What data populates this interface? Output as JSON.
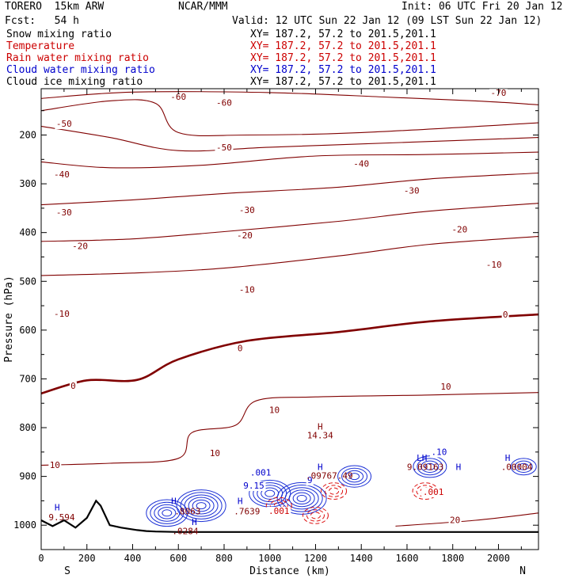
{
  "header": {
    "model": "TORERO  15km ARW",
    "center": "NCAR/MMM",
    "init": "Init: 06 UTC Fri 20 Jan 12",
    "fcst": "Fcst:   54 h",
    "valid": "Valid: 12 UTC Sun 22 Jan 12 (09 LST Sun 22 Jan 12)"
  },
  "fields": [
    {
      "label": "Snow mixing ratio",
      "xy": "XY= 187.2, 57.2 to 201.5,201.1",
      "color": "#000000"
    },
    {
      "label": "Temperature",
      "xy": "XY= 187.2, 57.2 to 201.5,201.1",
      "color": "#cc0000"
    },
    {
      "label": "Rain water mixing ratio",
      "xy": "XY= 187.2, 57.2 to 201.5,201.1",
      "color": "#cc0000"
    },
    {
      "label": "Cloud water mixing ratio",
      "xy": "XY= 187.2, 57.2 to 201.5,201.1",
      "color": "#0000cc"
    },
    {
      "label": "Cloud ice mixing ratio",
      "xy": "XY= 187.2, 57.2 to 201.5,201.1",
      "color": "#000000"
    }
  ],
  "chart_data": {
    "type": "contour",
    "xlabel": "Distance (km)",
    "ylabel": "Pressure (hPa)",
    "xlim": [
      0,
      2175
    ],
    "ylim": [
      1050,
      105
    ],
    "xticks": [
      0,
      200,
      400,
      600,
      800,
      1000,
      1200,
      1400,
      1600,
      1800,
      2000
    ],
    "yticks": [
      200,
      300,
      400,
      500,
      600,
      700,
      800,
      900,
      1000
    ],
    "x_end_labels": {
      "left": "S",
      "right": "N"
    },
    "temperature_contours": [
      {
        "value": -70,
        "points": [
          [
            0,
            125
          ],
          [
            400,
            112
          ],
          [
            1000,
            113
          ],
          [
            1500,
            122
          ],
          [
            1900,
            130
          ],
          [
            2175,
            138
          ]
        ]
      },
      {
        "value": -60,
        "points": [
          [
            0,
            150
          ],
          [
            300,
            130
          ],
          [
            500,
            135
          ],
          [
            600,
            195
          ],
          [
            900,
            200
          ],
          [
            1400,
            195
          ],
          [
            2175,
            175
          ]
        ]
      },
      {
        "value": -50,
        "points": [
          [
            0,
            182
          ],
          [
            300,
            205
          ],
          [
            600,
            232
          ],
          [
            1000,
            225
          ],
          [
            1600,
            215
          ],
          [
            2175,
            205
          ]
        ]
      },
      {
        "value": -40,
        "points": [
          [
            0,
            255
          ],
          [
            300,
            267
          ],
          [
            700,
            262
          ],
          [
            1200,
            243
          ],
          [
            1700,
            240
          ],
          [
            2175,
            235
          ]
        ]
      },
      {
        "value": -30,
        "points": [
          [
            0,
            343
          ],
          [
            400,
            333
          ],
          [
            800,
            320
          ],
          [
            1300,
            307
          ],
          [
            1700,
            290
          ],
          [
            2175,
            278
          ]
        ]
      },
      {
        "value": -20,
        "points": [
          [
            0,
            418
          ],
          [
            400,
            413
          ],
          [
            800,
            398
          ],
          [
            1300,
            377
          ],
          [
            1700,
            356
          ],
          [
            2175,
            340
          ]
        ]
      },
      {
        "value": -10,
        "points": [
          [
            0,
            488
          ],
          [
            400,
            483
          ],
          [
            800,
            473
          ],
          [
            1300,
            448
          ],
          [
            1700,
            424
          ],
          [
            2175,
            408
          ]
        ]
      },
      {
        "value": 0,
        "points": [
          [
            0,
            730
          ],
          [
            200,
            703
          ],
          [
            420,
            702
          ],
          [
            600,
            660
          ],
          [
            900,
            622
          ],
          [
            1300,
            604
          ],
          [
            1700,
            582
          ],
          [
            2175,
            568
          ]
        ]
      },
      {
        "value": 10,
        "points": [
          [
            0,
            877
          ],
          [
            300,
            873
          ],
          [
            600,
            863
          ],
          [
            660,
            810
          ],
          [
            850,
            795
          ],
          [
            940,
            745
          ],
          [
            1200,
            737
          ],
          [
            1700,
            733
          ],
          [
            2175,
            728
          ]
        ]
      },
      {
        "value": 20,
        "points": [
          [
            1550,
            1002
          ],
          [
            1900,
            990
          ],
          [
            2175,
            975
          ]
        ]
      }
    ],
    "temperature_labels": [
      {
        "text": "-70",
        "x": 2000,
        "y": 120
      },
      {
        "text": "-60",
        "x": 600,
        "y": 128
      },
      {
        "text": "-60",
        "x": 800,
        "y": 140
      },
      {
        "text": "-50",
        "x": 100,
        "y": 183
      },
      {
        "text": "-50",
        "x": 800,
        "y": 232
      },
      {
        "text": "-40",
        "x": 90,
        "y": 287
      },
      {
        "text": "-40",
        "x": 1400,
        "y": 265
      },
      {
        "text": "-30",
        "x": 100,
        "y": 365
      },
      {
        "text": "-30",
        "x": 900,
        "y": 360
      },
      {
        "text": "-30",
        "x": 1620,
        "y": 320
      },
      {
        "text": "-20",
        "x": 170,
        "y": 434
      },
      {
        "text": "-20",
        "x": 890,
        "y": 412
      },
      {
        "text": "-20",
        "x": 1830,
        "y": 400
      },
      {
        "text": "-10",
        "x": 90,
        "y": 573
      },
      {
        "text": "-10",
        "x": 900,
        "y": 523
      },
      {
        "text": "-10",
        "x": 1980,
        "y": 472
      },
      {
        "text": "0",
        "x": 140,
        "y": 720
      },
      {
        "text": "0",
        "x": 870,
        "y": 643
      },
      {
        "text": "0",
        "x": 2030,
        "y": 574
      },
      {
        "text": "10",
        "x": 60,
        "y": 883
      },
      {
        "text": "10",
        "x": 760,
        "y": 858
      },
      {
        "text": "10",
        "x": 1020,
        "y": 770
      },
      {
        "text": "10",
        "x": 1770,
        "y": 722
      },
      {
        "text": "20",
        "x": 1810,
        "y": 996
      }
    ],
    "max_labels": [
      {
        "text": "H",
        "x": 1220,
        "y": 804
      },
      {
        "text": "14.34",
        "x": 1220,
        "y": 822
      },
      {
        "text": "H",
        "x": 70,
        "y": 970
      },
      {
        "text": "9.594",
        "x": 90,
        "y": 990
      },
      {
        "text": "H",
        "x": 580,
        "y": 957
      },
      {
        "text": ".8063",
        "x": 640,
        "y": 978
      },
      {
        "text": "H",
        "x": 870,
        "y": 957
      },
      {
        "text": ".7639",
        "x": 900,
        "y": 978
      },
      {
        "text": "H",
        "x": 670,
        "y": 1000
      },
      {
        "text": ".0284",
        "x": 630,
        "y": 1018
      },
      {
        "text": "H",
        "x": 1220,
        "y": 887
      },
      {
        "text": ".09767.49",
        "x": 1260,
        "y": 905
      },
      {
        "text": "H",
        "x": 1825,
        "y": 887
      },
      {
        "text": "LH",
        "x": 1665,
        "y": 868
      },
      {
        "text": "9.09163",
        "x": 1680,
        "y": 887
      },
      {
        "text": "H",
        "x": 2040,
        "y": 868
      },
      {
        "text": ".00004",
        "x": 2080,
        "y": 887
      }
    ],
    "rain_contour_labels": [
      {
        "text": ".001",
        "x": 1715,
        "y": 938
      },
      {
        "text": ".001",
        "x": 1040,
        "y": 977
      }
    ],
    "cloud_water_labels": [
      {
        "text": ".001",
        "x": 960,
        "y": 898
      },
      {
        "text": "9.15",
        "x": 930,
        "y": 925
      },
      {
        "text": ".10",
        "x": 1740,
        "y": 856
      },
      {
        "text": "9",
        "x": 1175,
        "y": 914
      }
    ],
    "terrain_km": [
      0,
      50,
      100,
      150,
      200,
      240,
      260,
      300,
      350,
      420,
      460,
      500,
      600,
      800,
      1000,
      1400,
      1800,
      2175
    ],
    "terrain_hpa": [
      990,
      1002,
      990,
      1005,
      985,
      950,
      960,
      1000,
      1005,
      1010,
      1012,
      1013,
      1014,
      1014,
      1014,
      1014,
      1014,
      1014
    ]
  }
}
